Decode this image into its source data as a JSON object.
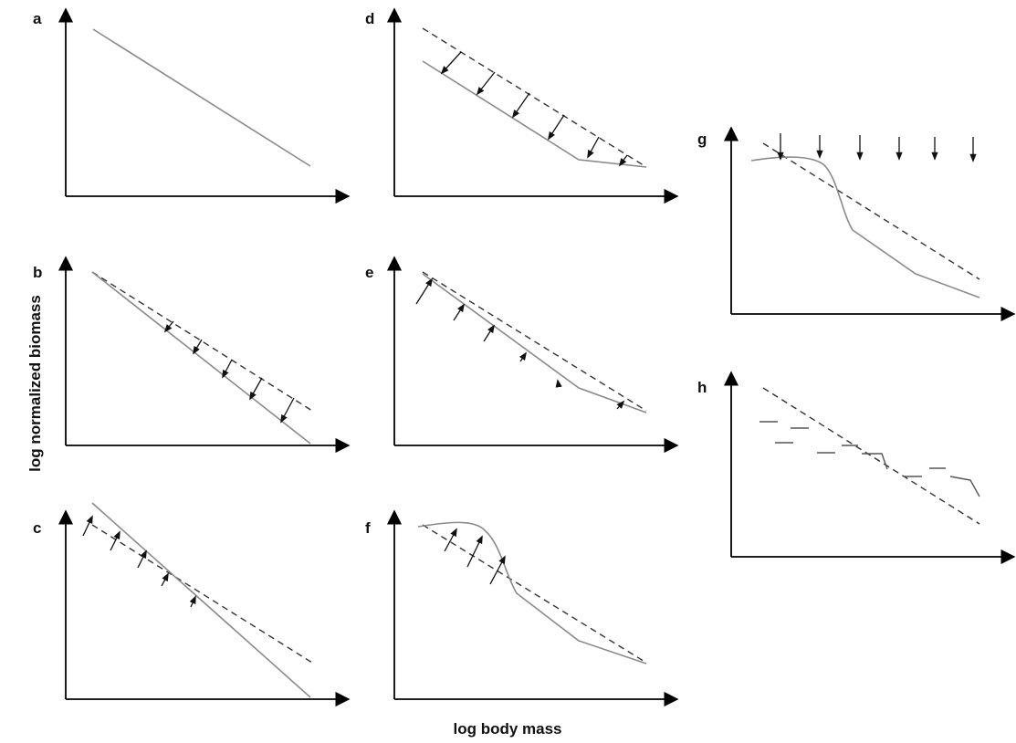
{
  "figure": {
    "ylabel": "log normalized biomass",
    "xlabel": "log body mass",
    "panels": [
      {
        "id": "a",
        "label": "a"
      },
      {
        "id": "b",
        "label": "b"
      },
      {
        "id": "c",
        "label": "c"
      },
      {
        "id": "d",
        "label": "d"
      },
      {
        "id": "e",
        "label": "e"
      },
      {
        "id": "f",
        "label": "f"
      },
      {
        "id": "g",
        "label": "g"
      },
      {
        "id": "h",
        "label": "h"
      }
    ]
  },
  "colors": {
    "axis": "#000000",
    "solid_line": "#8a8a8a",
    "dashed_line": "#333333",
    "arrows": "#111111"
  }
}
